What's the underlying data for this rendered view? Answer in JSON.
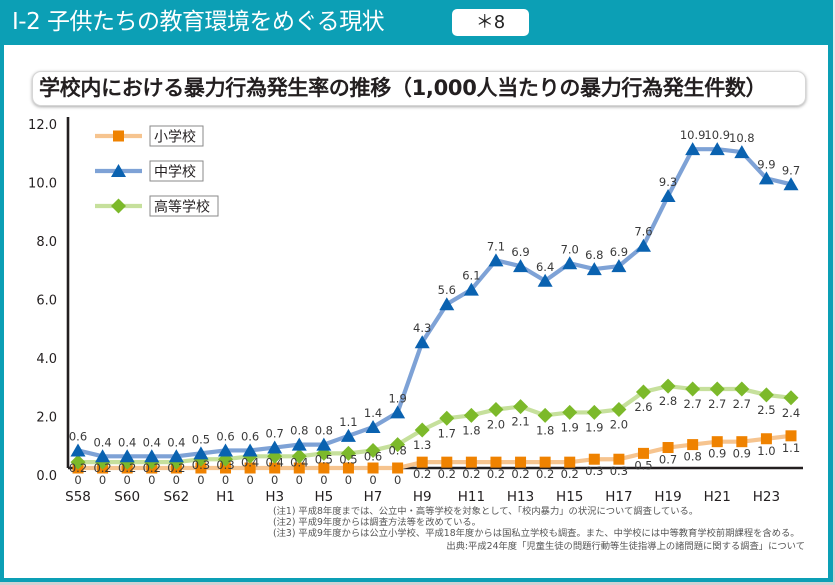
{
  "header": {
    "title": "Ⅰ-2 子供たちの教育環境をめぐる現状",
    "badge": "＊8"
  },
  "colors": {
    "frame": "#0c9fb5",
    "axis": "#231f20"
  },
  "chart_data": {
    "type": "line",
    "title": "学校内における暴力行為発生率の推移（1,000人当たりの暴力行為発生件数）",
    "xlabel": "",
    "ylabel": "",
    "x": [
      "S58",
      "S59",
      "S60",
      "S61",
      "S62",
      "S63",
      "H1",
      "H2",
      "H3",
      "H4",
      "H5",
      "H6",
      "H7",
      "H8",
      "H9",
      "H10",
      "H11",
      "H12",
      "H13",
      "H14",
      "H15",
      "H16",
      "H17",
      "H18",
      "H19",
      "H20",
      "H21",
      "H22",
      "H23",
      "H24"
    ],
    "x_tick_labels": [
      "S58",
      "S60",
      "S62",
      "H1",
      "H3",
      "H5",
      "H7",
      "H9",
      "H11",
      "H13",
      "H15",
      "H17",
      "H19",
      "H21",
      "H23"
    ],
    "ylim": [
      0,
      12
    ],
    "yticks": [
      0,
      2,
      4,
      6,
      8,
      10,
      12
    ],
    "ytick_labels": [
      "0.0",
      "2.0",
      "4.0",
      "6.0",
      "8.0",
      "10.0",
      "12.0"
    ],
    "grid": false,
    "legend_position": "top-left",
    "series": [
      {
        "name": "小学校",
        "marker": "square",
        "line_color": "#f6c48f",
        "marker_color": "#ef8200",
        "values": [
          0,
          0,
          0,
          0,
          0,
          0,
          0,
          0,
          0,
          0,
          0,
          0,
          0,
          0,
          0.2,
          0.2,
          0.2,
          0.2,
          0.2,
          0.2,
          0.2,
          0.3,
          0.3,
          0.5,
          0.7,
          0.8,
          0.9,
          0.9,
          1.0,
          1.1
        ],
        "labels": [
          "0",
          "0",
          "0",
          "0",
          "0",
          "0",
          "0",
          "0",
          "0",
          "0",
          "0",
          "0",
          "0",
          "0",
          "0.2",
          "0.2",
          "0.2",
          "0.2",
          "0.2",
          "0.2",
          "0.2",
          "0.3",
          "0.3",
          "0.5",
          "0.7",
          "0.8",
          "0.9",
          "0.9",
          "1.0",
          "1.1"
        ]
      },
      {
        "name": "高等学校",
        "marker": "diamond",
        "line_color": "#c6e09c",
        "marker_color": "#7cb92a",
        "values": [
          0.2,
          0.2,
          0.2,
          0.2,
          0.2,
          0.3,
          0.3,
          0.4,
          0.4,
          0.4,
          0.5,
          0.5,
          0.6,
          0.8,
          1.3,
          1.7,
          1.8,
          2.0,
          2.1,
          1.8,
          1.9,
          1.9,
          2.0,
          2.6,
          2.8,
          2.7,
          2.7,
          2.7,
          2.5,
          2.4
        ],
        "labels": [
          "0.2",
          "0.2",
          "0.2",
          "0.2",
          "0.2",
          "0.3",
          "0.3",
          "0.4",
          "0.4",
          "0.4",
          "0.5",
          "0.5",
          "0.6",
          "0.8",
          "1.3",
          "1.7",
          "1.8",
          "2.0",
          "2.1",
          "1.8",
          "1.9",
          "1.9",
          "2.0",
          "2.6",
          "2.8",
          "2.7",
          "2.7",
          "2.7",
          "2.5",
          "2.4"
        ]
      },
      {
        "name": "中学校",
        "marker": "triangle",
        "line_color": "#7ea2d6",
        "marker_color": "#0a62b0",
        "values": [
          0.6,
          0.4,
          0.4,
          0.4,
          0.4,
          0.5,
          0.6,
          0.6,
          0.7,
          0.8,
          0.8,
          1.1,
          1.4,
          1.9,
          4.3,
          5.6,
          6.1,
          7.1,
          6.9,
          6.4,
          7.0,
          6.8,
          6.9,
          7.6,
          9.3,
          10.9,
          10.9,
          10.8,
          9.9,
          9.7
        ],
        "labels": [
          "0.6",
          "0.4",
          "0.4",
          "0.4",
          "0.4",
          "0.5",
          "0.6",
          "0.6",
          "0.7",
          "0.8",
          "0.8",
          "1.1",
          "1.4",
          "1.9",
          "4.3",
          "5.6",
          "6.1",
          "7.1",
          "6.9",
          "6.4",
          "7.0",
          "6.8",
          "6.9",
          "7.6",
          "9.3",
          "10.9",
          "10.9",
          "10.8",
          "9.9",
          "9.7"
        ]
      }
    ],
    "legend_order": [
      0,
      2,
      1
    ]
  },
  "notes": [
    "(注1) 平成8年度までは、公立中・高等学校を対象として、「校内暴力」の状況について調査している。",
    "(注2) 平成9年度からは調査方法等を改めている。",
    "(注3) 平成9年度からは公立小学校、平成18年度からは国私立学校も調査。また、中学校には中等教育学校前期課程を含める。"
  ],
  "source": "出典:平成24年度「児童生徒の問題行動等生徒指導上の諸問題に関する調査」について"
}
